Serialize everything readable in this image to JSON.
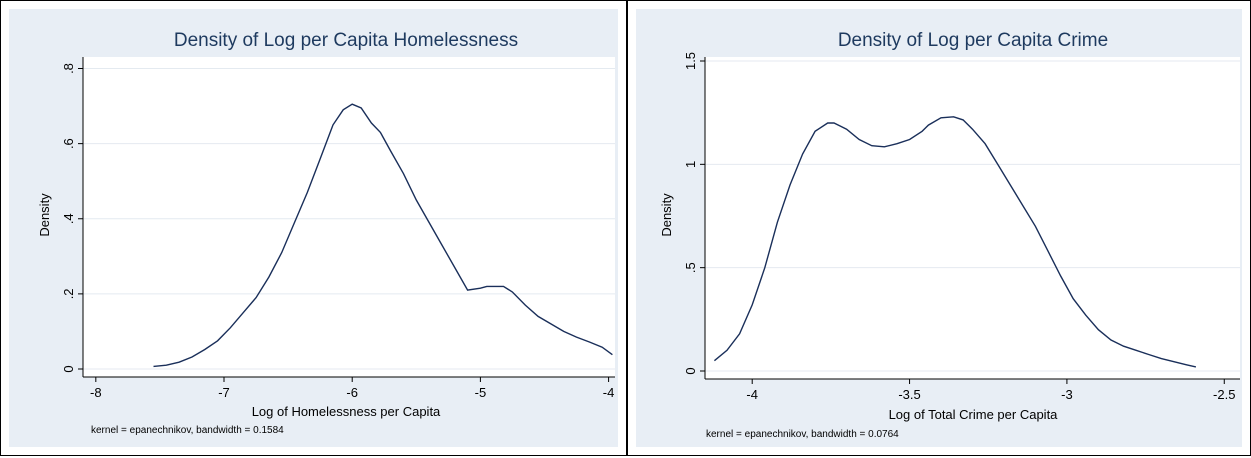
{
  "chart_data": [
    {
      "type": "line",
      "title": "Density of Log per Capita Homelessness",
      "xlabel": "Log of Homelessness per Capita",
      "ylabel": "Density",
      "note": "kernel = epanechnikov, bandwidth = 0.1584",
      "xlim": [
        -8.1,
        -3.95
      ],
      "ylim": [
        0,
        0.82
      ],
      "xticks": [
        -8,
        -7,
        -6,
        -5,
        -4
      ],
      "xtick_labels": [
        "-8",
        "-7",
        "-6",
        "-5",
        "-4"
      ],
      "yticks": [
        0,
        0.2,
        0.4,
        0.6,
        0.8
      ],
      "ytick_labels": [
        "0",
        ".2",
        ".4",
        ".6",
        ".8"
      ],
      "grid": true,
      "color": "#1a2f5a",
      "x": [
        -7.55,
        -7.45,
        -7.35,
        -7.25,
        -7.15,
        -7.05,
        -6.95,
        -6.85,
        -6.75,
        -6.65,
        -6.55,
        -6.45,
        -6.35,
        -6.25,
        -6.15,
        -6.07,
        -6.0,
        -5.93,
        -5.85,
        -5.78,
        -5.7,
        -5.6,
        -5.5,
        -5.4,
        -5.3,
        -5.2,
        -5.1,
        -5.0,
        -4.95,
        -4.9,
        -4.82,
        -4.75,
        -4.65,
        -4.55,
        -4.45,
        -4.35,
        -4.25,
        -4.15,
        -4.05,
        -3.97
      ],
      "y": [
        0.007,
        0.01,
        0.018,
        0.032,
        0.052,
        0.075,
        0.11,
        0.15,
        0.19,
        0.245,
        0.31,
        0.39,
        0.47,
        0.56,
        0.65,
        0.69,
        0.705,
        0.695,
        0.655,
        0.63,
        0.58,
        0.52,
        0.45,
        0.39,
        0.33,
        0.27,
        0.21,
        0.215,
        0.22,
        0.22,
        0.22,
        0.205,
        0.17,
        0.14,
        0.12,
        0.1,
        0.085,
        0.072,
        0.058,
        0.038
      ]
    },
    {
      "type": "line",
      "title": "Density of Log per Capita Crime",
      "xlabel": "Log of Total Crime per Capita",
      "ylabel": "Density",
      "note": "kernel = epanechnikov, bandwidth = 0.0764",
      "xlim": [
        -4.15,
        -2.45
      ],
      "ylim": [
        0,
        1.5
      ],
      "xticks": [
        -4,
        -3.5,
        -3,
        -2.5
      ],
      "xtick_labels": [
        "-4",
        "-3.5",
        "-3",
        "-2.5"
      ],
      "yticks": [
        0,
        0.5,
        1,
        1.5
      ],
      "ytick_labels": [
        "0",
        ".5",
        "1",
        "1.5"
      ],
      "grid": true,
      "color": "#1a2f5a",
      "x": [
        -4.12,
        -4.08,
        -4.04,
        -4.0,
        -3.96,
        -3.92,
        -3.88,
        -3.84,
        -3.8,
        -3.76,
        -3.74,
        -3.7,
        -3.66,
        -3.62,
        -3.58,
        -3.54,
        -3.5,
        -3.46,
        -3.44,
        -3.4,
        -3.36,
        -3.33,
        -3.3,
        -3.26,
        -3.22,
        -3.18,
        -3.14,
        -3.1,
        -3.06,
        -3.02,
        -2.98,
        -2.94,
        -2.9,
        -2.86,
        -2.82,
        -2.78,
        -2.74,
        -2.7,
        -2.66,
        -2.62,
        -2.59
      ],
      "y": [
        0.05,
        0.1,
        0.18,
        0.32,
        0.5,
        0.72,
        0.9,
        1.05,
        1.16,
        1.2,
        1.2,
        1.17,
        1.12,
        1.09,
        1.085,
        1.1,
        1.12,
        1.16,
        1.19,
        1.225,
        1.23,
        1.215,
        1.17,
        1.1,
        1.0,
        0.9,
        0.8,
        0.7,
        0.58,
        0.46,
        0.35,
        0.27,
        0.2,
        0.15,
        0.12,
        0.1,
        0.08,
        0.06,
        0.045,
        0.03,
        0.02
      ]
    }
  ]
}
